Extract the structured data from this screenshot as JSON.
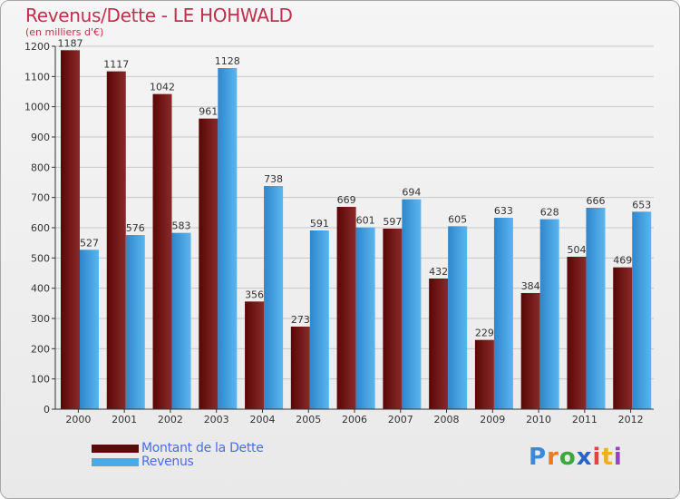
{
  "title": "Revenus/Dette - LE HOHWALD",
  "subtitle": "(en milliers d'€)",
  "logo": {
    "text": "Proxiti",
    "letter_colors": [
      "#3a8ad8",
      "#f07a1a",
      "#3aa83a",
      "#2a62c8",
      "#e64040",
      "#f0b01a",
      "#9a40c0"
    ]
  },
  "legend": [
    {
      "label": "Montant de la Dette",
      "color": "#5a0a0a"
    },
    {
      "label": "Revenus",
      "color": "#4da8e6"
    }
  ],
  "chart_data": {
    "type": "bar",
    "title": "Revenus/Dette - LE HOHWALD",
    "subtitle": "(en milliers d'€)",
    "categories": [
      "2000",
      "2001",
      "2002",
      "2003",
      "2004",
      "2005",
      "2006",
      "2007",
      "2008",
      "2009",
      "2010",
      "2011",
      "2012"
    ],
    "series": [
      {
        "name": "Montant de la Dette",
        "color": "#7a1a1a",
        "values": [
          1187,
          1117,
          1042,
          961,
          356,
          273,
          669,
          597,
          432,
          229,
          384,
          504,
          469
        ]
      },
      {
        "name": "Revenus",
        "color": "#4da8e6",
        "values": [
          527,
          576,
          583,
          1128,
          738,
          591,
          601,
          694,
          605,
          633,
          628,
          666,
          653
        ]
      }
    ],
    "ylim": [
      0,
      1200
    ],
    "yticks": [
      0,
      100,
      200,
      300,
      400,
      500,
      600,
      700,
      800,
      900,
      1000,
      1100,
      1200
    ],
    "grid": true,
    "legend_position": "bottom-left"
  }
}
